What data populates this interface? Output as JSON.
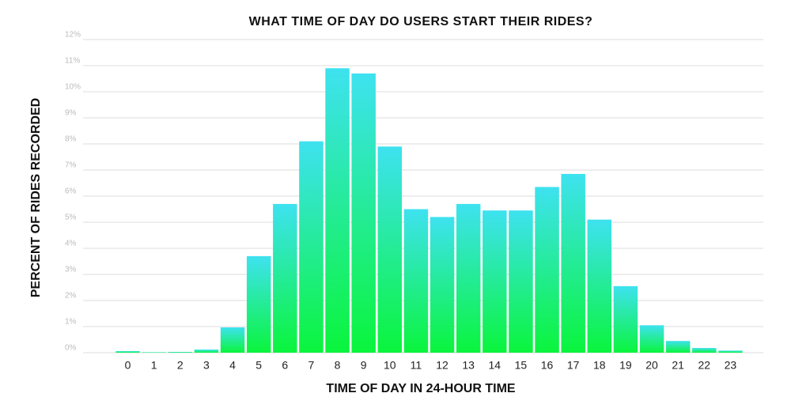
{
  "chart_data": {
    "type": "bar",
    "title": "WHAT TIME OF DAY DO USERS START THEIR RIDES?",
    "x_label": "TIME OF DAY IN 24-HOUR TIME",
    "y_label": "PERCENT OF RIDES RECORDED",
    "categories": [
      "0",
      "1",
      "2",
      "3",
      "4",
      "5",
      "6",
      "7",
      "8",
      "9",
      "10",
      "11",
      "12",
      "13",
      "14",
      "15",
      "16",
      "17",
      "18",
      "19",
      "20",
      "21",
      "22",
      "23"
    ],
    "values": [
      0.06,
      0.02,
      0.03,
      0.12,
      0.97,
      3.7,
      5.7,
      8.1,
      10.9,
      10.7,
      7.9,
      5.5,
      5.2,
      5.7,
      5.45,
      5.45,
      6.35,
      6.85,
      5.1,
      2.55,
      1.05,
      0.45,
      0.18,
      0.08
    ],
    "gradient": [
      "#3ee2f0",
      "#0af53c"
    ],
    "ylim": [
      0,
      12
    ],
    "yticks": [
      {
        "value": 0,
        "label": "0%"
      },
      {
        "value": 1,
        "label": "1%"
      },
      {
        "value": 2,
        "label": "2%"
      },
      {
        "value": 3,
        "label": "3%"
      },
      {
        "value": 4,
        "label": "4%"
      },
      {
        "value": 5,
        "label": "5%"
      },
      {
        "value": 6,
        "label": "6%"
      },
      {
        "value": 7,
        "label": "7%"
      },
      {
        "value": 8,
        "label": "8%"
      },
      {
        "value": 9,
        "label": "9%"
      },
      {
        "value": 10,
        "label": "10%"
      },
      {
        "value": 11,
        "label": "11%"
      },
      {
        "value": 12,
        "label": "12%"
      }
    ],
    "grid": true
  }
}
